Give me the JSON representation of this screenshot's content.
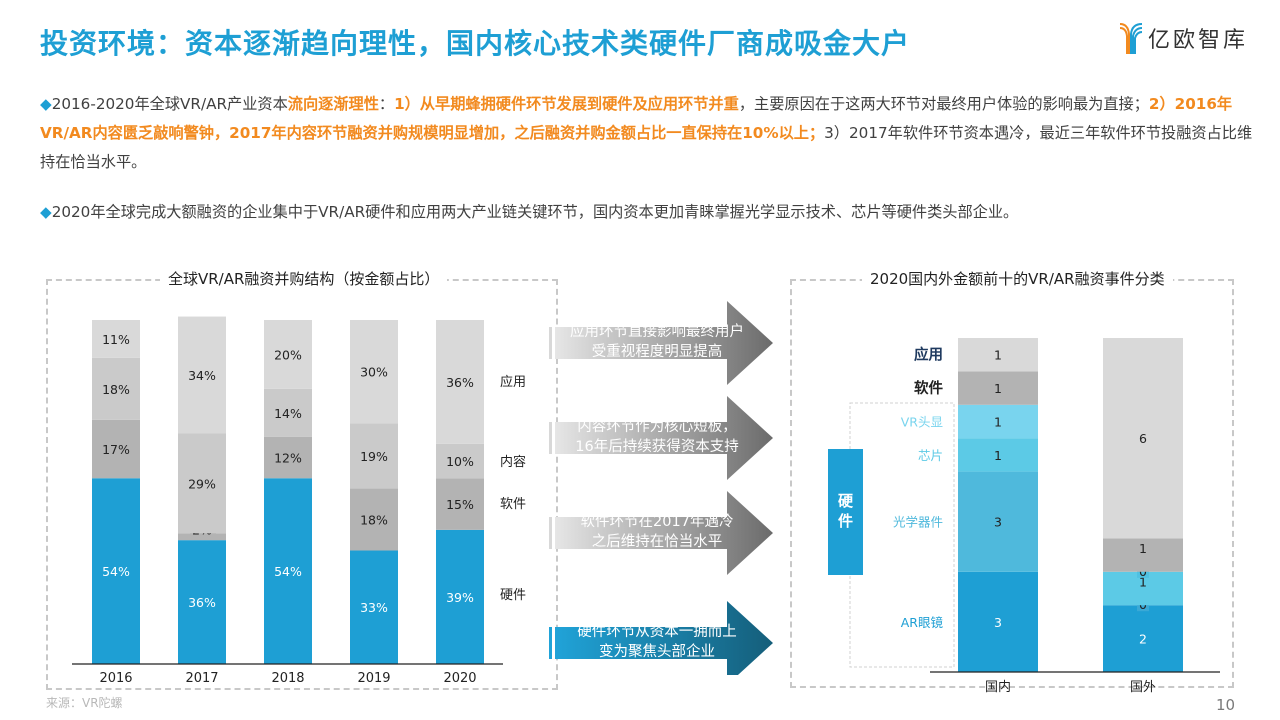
{
  "header": {
    "title": "投资环境：资本逐渐趋向理性，国内核心技术类硬件厂商成吸金大户",
    "logo_text": "亿欧智库"
  },
  "paragraphs": [
    {
      "segments": [
        {
          "text": "◆",
          "style": "diamond"
        },
        {
          "text": "2016-2020年全球VR/AR产业资本",
          "style": "normal"
        },
        {
          "text": "流向逐渐理性",
          "style": "hl"
        },
        {
          "text": "：",
          "style": "normal"
        },
        {
          "text": "1）从早期蜂拥硬件环节发展到硬件及应用环节并重",
          "style": "hl"
        },
        {
          "text": "，主要原因在于这两大环节对最终用户体验的影响最为直接；",
          "style": "normal"
        },
        {
          "text": "2）2016年VR/AR内容匮乏敲响警钟，2017年内容环节融资并购规模明显增加，之后融资并购金额占比一直保持在10%以上；",
          "style": "hl"
        },
        {
          "text": "3）2017年软件环节资本遇冷，最近三年软件环节投融资占比维持在恰当水平。",
          "style": "normal"
        }
      ]
    },
    {
      "segments": [
        {
          "text": "◆",
          "style": "diamond"
        },
        {
          "text": "2020年全球完成大额融资的企业集中于VR/AR硬件和应用两大产业链关键环节，国内资本更加青睐掌握光学显示技术、芯片等硬件类头部企业。",
          "style": "normal"
        }
      ]
    }
  ],
  "arrows": [
    {
      "line1": "应用环节直接影响最终用户",
      "line2": "受重视程度明显提高",
      "variant": "gray"
    },
    {
      "line1": "内容环节作为核心短板，",
      "line2": "16年后持续获得资本支持",
      "variant": "gray"
    },
    {
      "line1": "软件环节在2017年遇冷",
      "line2": "之后维持在恰当水平",
      "variant": "gray"
    },
    {
      "line1": "硬件环节从资本一拥而上",
      "line2": "变为聚焦头部企业",
      "variant": "blue"
    }
  ],
  "footer": {
    "source": "来源：VR陀螺",
    "page_number": "10"
  },
  "colors": {
    "accent": "#1e9fd4",
    "highlight": "#f28a1f",
    "app": "#d9d9d9",
    "content": "#cacaca",
    "software": "#b3b3b3",
    "hardware": "#1e9fd4",
    "vr_headset": "#79d4ee",
    "chip": "#5ccae6",
    "optics": "#4fb9dc",
    "ar_glasses": "#1e9fd4"
  },
  "chart_data": [
    {
      "type": "bar",
      "stacked": true,
      "title": "全球VR/AR融资并购结构（按金额占比）",
      "categories": [
        "2016",
        "2017",
        "2018",
        "2019",
        "2020"
      ],
      "series": [
        {
          "name": "硬件",
          "values": [
            54,
            36,
            54,
            33,
            39
          ],
          "labels": [
            "54%",
            "36%",
            "54%",
            "33%",
            "39%"
          ]
        },
        {
          "name": "软件",
          "values": [
            17,
            2,
            12,
            18,
            15
          ],
          "labels": [
            "17%",
            "2%",
            "12%",
            "18%",
            "15%"
          ]
        },
        {
          "name": "内容",
          "values": [
            18,
            29,
            14,
            19,
            10
          ],
          "labels": [
            "18%",
            "29%",
            "14%",
            "19%",
            "10%"
          ]
        },
        {
          "name": "应用",
          "values": [
            11,
            34,
            20,
            30,
            36
          ],
          "labels": [
            "11%",
            "34%",
            "20%",
            "30%",
            "36%"
          ]
        }
      ],
      "legend": [
        "应用",
        "内容",
        "软件",
        "硬件"
      ],
      "legend_position": "right",
      "ylim": [
        0,
        100
      ],
      "xlabel": "",
      "ylabel": ""
    },
    {
      "type": "bar",
      "stacked": true,
      "title": "2020国内外金额前十的VR/AR融资事件分类",
      "categories": [
        "国内",
        "国外"
      ],
      "series": [
        {
          "name": "AR眼镜",
          "values": [
            3,
            2
          ]
        },
        {
          "name": "光学器件",
          "values": [
            3,
            0
          ]
        },
        {
          "name": "芯片",
          "values": [
            1,
            1
          ]
        },
        {
          "name": "VR头显",
          "values": [
            1,
            0
          ]
        },
        {
          "name": "软件",
          "values": [
            1,
            1
          ]
        },
        {
          "name": "应用",
          "values": [
            1,
            6
          ]
        }
      ],
      "group_label": "硬件",
      "ylim": [
        0,
        10
      ],
      "xlabel": "",
      "ylabel": ""
    }
  ]
}
